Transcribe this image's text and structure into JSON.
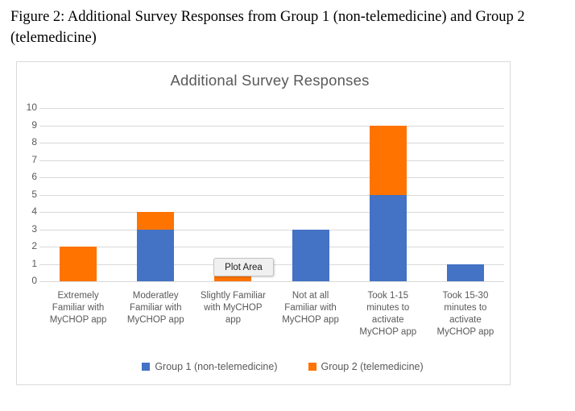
{
  "caption": {
    "line1": "Figure 2: Additional Survey Responses from Group 1 (non-telemedicine) and Group 2",
    "line2": "(telemedicine)"
  },
  "chart": {
    "tooltip": "Plot Area"
  },
  "chart_data": {
    "type": "bar",
    "stacked": true,
    "title": "Additional Survey Responses",
    "categories": [
      "Extremely Familiar with MyCHOP app",
      "Moderatley Familiar with MyCHOP app",
      "Slightly Familiar with MyCHOP app",
      "Not at all Familiar with MyCHOP app",
      "Took 1-15 minutes to activate MyCHOP app",
      "Took 15-30 minutes to activate MyCHOP app"
    ],
    "series": [
      {
        "name": "Group 1 (non-telemedicine)",
        "color": "#4472C4",
        "values": [
          0,
          3,
          0,
          3,
          5,
          1
        ]
      },
      {
        "name": "Group 2 (telemedicine)",
        "color": "#FF7300",
        "values": [
          2,
          1,
          1,
          0,
          4,
          0
        ]
      }
    ],
    "ylim": [
      0,
      10
    ],
    "ytick_step": 1,
    "grid": true,
    "legend_position": "bottom",
    "gridline_color": "#D9D9D9",
    "text_color": "#595959"
  }
}
